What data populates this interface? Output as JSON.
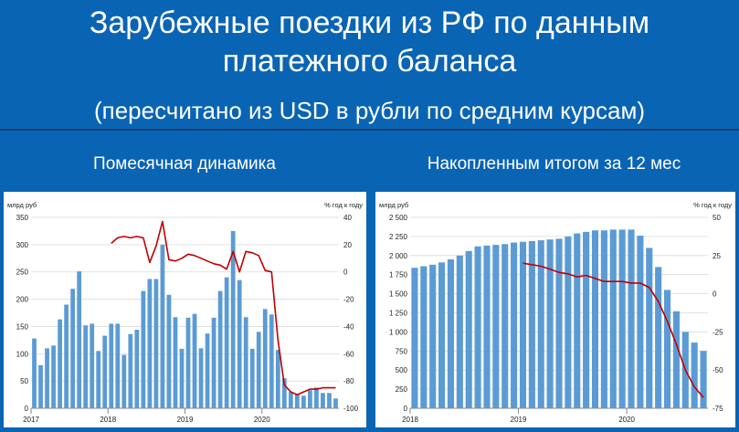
{
  "header": {
    "title_line1": "Зарубежные поездки из РФ по данным",
    "title_line2": "платежного баланса",
    "subtitle": "(пересчитано из USD в рубли по средним курсам)"
  },
  "panels": {
    "left_heading": "Помесячная динамика",
    "right_heading": "Накопленным итогом за 12 мес"
  },
  "colors": {
    "background": "#0a64b4",
    "bar": "#5b9bd5",
    "line": "#c00000"
  },
  "chart_data": [
    {
      "type": "bar",
      "title": "",
      "ylabel": "млрд руб",
      "y2label": "% год к году",
      "ylim": [
        0,
        350
      ],
      "y2lim": [
        -100,
        40
      ],
      "yticks": [
        "0",
        "50",
        "100",
        "150",
        "200",
        "250",
        "300",
        "350"
      ],
      "y2ticks": [
        "-100",
        "-80",
        "-60",
        "-40",
        "-20",
        "0",
        "20",
        "40"
      ],
      "xlabels": [
        "2017",
        "2018",
        "2019",
        "2020"
      ],
      "xlabel_index": [
        0,
        12,
        24,
        36
      ],
      "series": [
        {
          "kind": "bar",
          "axis": "left",
          "values": [
            128,
            79,
            110,
            115,
            163,
            190,
            219,
            251,
            152,
            155,
            105,
            133,
            155,
            155,
            98,
            136,
            144,
            215,
            237,
            237,
            300,
            208,
            167,
            109,
            166,
            173,
            110,
            137,
            166,
            215,
            240,
            325,
            235,
            167,
            109,
            140,
            182,
            172,
            107,
            55,
            30,
            25,
            23,
            33,
            38,
            28,
            28,
            18
          ]
        },
        {
          "kind": "line",
          "axis": "right",
          "values": [
            null,
            null,
            null,
            null,
            null,
            null,
            null,
            null,
            null,
            null,
            null,
            null,
            21,
            25,
            26,
            25,
            26,
            25,
            7,
            19,
            37,
            9,
            8,
            10,
            13,
            12,
            10,
            8,
            6,
            5,
            2,
            15,
            0,
            15,
            14,
            12,
            1,
            0,
            -50,
            -83,
            -88,
            -90,
            -88,
            -86,
            -86,
            -85,
            -85,
            -85
          ]
        }
      ]
    },
    {
      "type": "bar",
      "title": "",
      "ylabel": "млрд руб",
      "y2label": "% год к году",
      "ylim": [
        0,
        2500
      ],
      "y2lim": [
        -75,
        50
      ],
      "yticks": [
        "0",
        "250",
        "500",
        "750",
        "1 000",
        "1 250",
        "1 500",
        "1 750",
        "2 000",
        "2 250",
        "2 500"
      ],
      "y2ticks": [
        "-75",
        "-50",
        "-25",
        "0",
        "25",
        "50"
      ],
      "xlabels": [
        "2018",
        "2019",
        "2020"
      ],
      "xlabel_index": [
        0,
        12,
        24
      ],
      "series": [
        {
          "kind": "bar",
          "axis": "left",
          "values": [
            1840,
            1860,
            1880,
            1910,
            1950,
            2000,
            2060,
            2120,
            2130,
            2140,
            2150,
            2170,
            2180,
            2190,
            2200,
            2210,
            2220,
            2250,
            2290,
            2310,
            2330,
            2330,
            2340,
            2340,
            2340,
            2260,
            2100,
            1850,
            1550,
            1270,
            1000,
            860,
            750
          ]
        },
        {
          "kind": "line",
          "axis": "right",
          "values": [
            null,
            null,
            null,
            null,
            null,
            null,
            null,
            null,
            null,
            null,
            null,
            null,
            20,
            19,
            18,
            16,
            14,
            13,
            11,
            12,
            10,
            8,
            8,
            8,
            7,
            7,
            4,
            -5,
            -18,
            -33,
            -50,
            -61,
            -68
          ]
        }
      ]
    }
  ]
}
